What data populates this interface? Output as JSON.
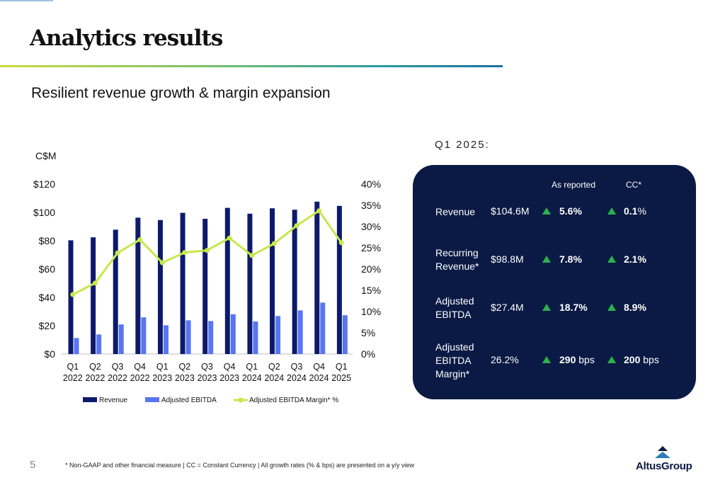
{
  "title": "Analytics results",
  "subtitle": "Resilient revenue growth & margin expansion",
  "page_number": "5",
  "footnote": "* Non-GAAP and other financial measure | CC = Constant Currency | All growth rates (% & bps) are presented on a y/y view",
  "logo_text": "AltusGroup",
  "colors": {
    "revenue": "#0d1a6b",
    "ebitda": "#5876f2",
    "margin": "#c6e84a",
    "panel": "#0b1a44",
    "up_arrow": "#2bb24c"
  },
  "chart_data": {
    "type": "bar",
    "unit_label": "C$M",
    "categories": [
      [
        "Q1",
        "2022"
      ],
      [
        "Q2",
        "2022"
      ],
      [
        "Q3",
        "2022"
      ],
      [
        "Q4",
        "2022"
      ],
      [
        "Q1",
        "2023"
      ],
      [
        "Q2",
        "2023"
      ],
      [
        "Q3",
        "2023"
      ],
      [
        "Q4",
        "2023"
      ],
      [
        "Q1",
        "2024"
      ],
      [
        "Q2",
        "2024"
      ],
      [
        "Q3",
        "2024"
      ],
      [
        "Q4",
        "2024"
      ],
      [
        "Q1",
        "2025"
      ]
    ],
    "series": [
      {
        "name": "Revenue",
        "type": "bar",
        "axis": "left",
        "values": [
          80.3,
          82.4,
          87.8,
          96.3,
          94.6,
          99.7,
          95.5,
          103.2,
          99.1,
          102.9,
          101.9,
          107.6,
          104.6
        ]
      },
      {
        "name": "Adjusted EBITDA",
        "type": "bar",
        "axis": "left",
        "values": [
          11.3,
          13.8,
          20.9,
          25.9,
          20.3,
          23.8,
          23.3,
          28.1,
          23.0,
          26.8,
          30.8,
          36.3,
          27.4
        ]
      },
      {
        "name": "Adjusted EBITDA Margin* %",
        "type": "line",
        "axis": "right",
        "values": [
          14.0,
          16.7,
          23.8,
          26.9,
          21.5,
          23.9,
          24.4,
          27.3,
          23.2,
          26.0,
          30.2,
          33.7,
          26.2
        ]
      }
    ],
    "left_axis": {
      "min": 0,
      "max": 120,
      "ticks": [
        "$0",
        "$20",
        "$40",
        "$60",
        "$80",
        "$100",
        "$120"
      ]
    },
    "right_axis": {
      "min": 0,
      "max": 40,
      "ticks": [
        "0%",
        "5%",
        "10%",
        "15%",
        "20%",
        "25%",
        "30%",
        "35%",
        "40%"
      ]
    },
    "grid": false,
    "legend_position": "bottom"
  },
  "kpi": {
    "period_label": "Q1 2025:",
    "col_reported": "As reported",
    "col_cc": "CC*",
    "rows": [
      {
        "label": "Revenue",
        "value": "$104.6M",
        "reported_bold": "5.6%",
        "reported_unit": "",
        "cc_bold": "0.1",
        "cc_unit": "%"
      },
      {
        "label": "Recurring\nRevenue*",
        "value": "$98.8M",
        "reported_bold": "7.8%",
        "reported_unit": "",
        "cc_bold": "2.1%",
        "cc_unit": ""
      },
      {
        "label": "Adjusted\nEBITDA",
        "value": "$27.4M",
        "reported_bold": "18.7%",
        "reported_unit": "",
        "cc_bold": "8.9%",
        "cc_unit": ""
      },
      {
        "label": "Adjusted\nEBITDA\nMargin*",
        "value": "26.2%",
        "reported_bold": "290",
        "reported_unit": " bps",
        "cc_bold": "200",
        "cc_unit": " bps"
      }
    ]
  }
}
